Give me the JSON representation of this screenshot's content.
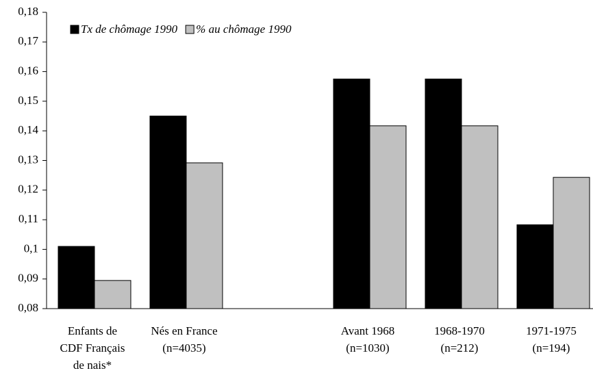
{
  "chart_data": {
    "type": "bar",
    "categories": [
      [
        "Enfants de",
        "CDF Français",
        "de nais*"
      ],
      [
        "Nés en France",
        "(n=4035)"
      ],
      null,
      [
        "Avant 1968",
        "(n=1030)"
      ],
      [
        "1968-1970",
        "(n=212)"
      ],
      [
        "1971-1975",
        "(n=194)"
      ]
    ],
    "series": [
      {
        "name": "Tx de chômage 1990",
        "color": "#000000",
        "values": [
          0.101,
          0.145,
          null,
          0.1575,
          0.1575,
          0.1083
        ]
      },
      {
        "name": "% au chômage 1990",
        "color": "#c0c0c0",
        "values": [
          0.0895,
          0.1292,
          null,
          0.1417,
          0.1417,
          0.1243
        ]
      }
    ],
    "ylim": [
      0.08,
      0.18
    ],
    "yticks": [
      {
        "value": 0.08,
        "label": "0,08"
      },
      {
        "value": 0.09,
        "label": "0,09"
      },
      {
        "value": 0.1,
        "label": "0,1"
      },
      {
        "value": 0.11,
        "label": "0,11"
      },
      {
        "value": 0.12,
        "label": "0,12"
      },
      {
        "value": 0.13,
        "label": "0,13"
      },
      {
        "value": 0.14,
        "label": "0,14"
      },
      {
        "value": 0.15,
        "label": "0,15"
      },
      {
        "value": 0.16,
        "label": "0,16"
      },
      {
        "value": 0.17,
        "label": "0,17"
      },
      {
        "value": 0.18,
        "label": "0,18"
      }
    ],
    "grid": false,
    "legend": "upper left"
  }
}
